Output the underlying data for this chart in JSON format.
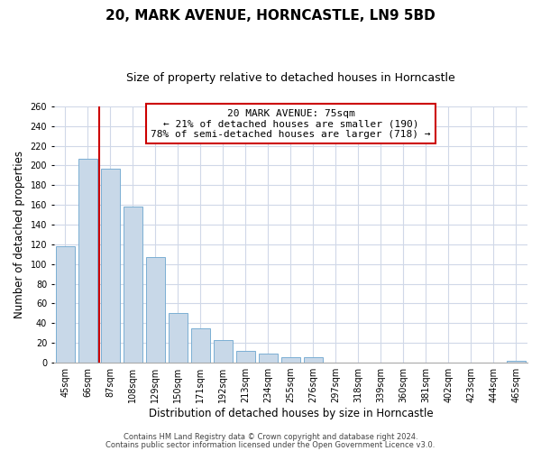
{
  "title": "20, MARK AVENUE, HORNCASTLE, LN9 5BD",
  "subtitle": "Size of property relative to detached houses in Horncastle",
  "xlabel": "Distribution of detached houses by size in Horncastle",
  "ylabel": "Number of detached properties",
  "bar_labels": [
    "45sqm",
    "66sqm",
    "87sqm",
    "108sqm",
    "129sqm",
    "150sqm",
    "171sqm",
    "192sqm",
    "213sqm",
    "234sqm",
    "255sqm",
    "276sqm",
    "297sqm",
    "318sqm",
    "339sqm",
    "360sqm",
    "381sqm",
    "402sqm",
    "423sqm",
    "444sqm",
    "465sqm"
  ],
  "bar_values": [
    118,
    207,
    197,
    158,
    107,
    50,
    35,
    23,
    12,
    9,
    6,
    6,
    0,
    0,
    0,
    0,
    0,
    0,
    0,
    0,
    2
  ],
  "bar_color": "#c8d8e8",
  "bar_edge_color": "#7bafd4",
  "vline_pos": 1.5,
  "marker_label": "20 MARK AVENUE: 75sqm",
  "annotation_line1": "← 21% of detached houses are smaller (190)",
  "annotation_line2": "78% of semi-detached houses are larger (718) →",
  "vline_color": "#cc0000",
  "annotation_box_edge": "#cc0000",
  "ylim": [
    0,
    260
  ],
  "yticks": [
    0,
    20,
    40,
    60,
    80,
    100,
    120,
    140,
    160,
    180,
    200,
    220,
    240,
    260
  ],
  "footer1": "Contains HM Land Registry data © Crown copyright and database right 2024.",
  "footer2": "Contains public sector information licensed under the Open Government Licence v3.0.",
  "bg_color": "#ffffff",
  "grid_color": "#d0d8e8",
  "title_fontsize": 11,
  "subtitle_fontsize": 9,
  "axis_label_fontsize": 8.5,
  "tick_fontsize": 7,
  "footer_fontsize": 6,
  "annotation_fontsize": 8
}
